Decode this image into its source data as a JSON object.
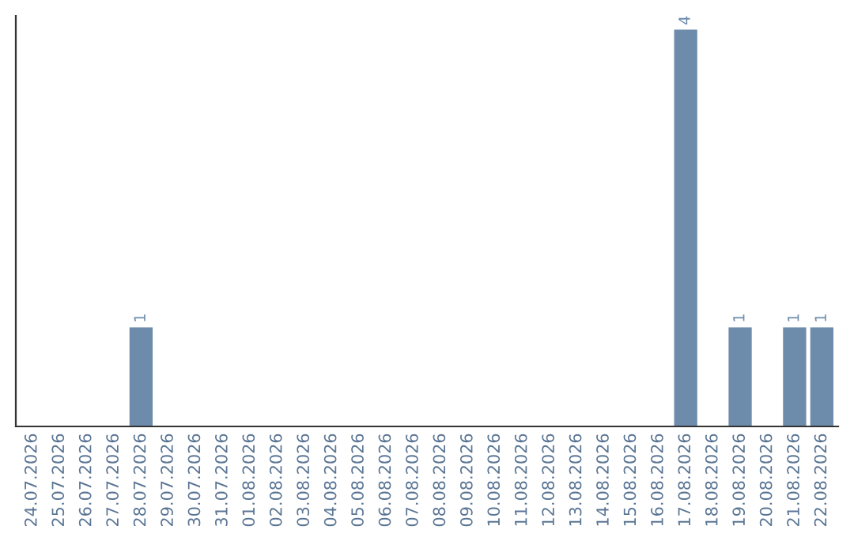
{
  "chart_data": {
    "type": "bar",
    "categories": [
      "24.07.2026",
      "25.07.2026",
      "26.07.2026",
      "27.07.2026",
      "28.07.2026",
      "29.07.2026",
      "30.07.2026",
      "31.07.2026",
      "01.08.2026",
      "02.08.2026",
      "03.08.2026",
      "04.08.2026",
      "05.08.2026",
      "06.08.2026",
      "07.08.2026",
      "08.08.2026",
      "09.08.2026",
      "10.08.2026",
      "11.08.2026",
      "12.08.2026",
      "13.08.2026",
      "14.08.2026",
      "15.08.2026",
      "16.08.2026",
      "17.08.2026",
      "18.08.2026",
      "19.08.2026",
      "20.08.2026",
      "21.08.2026",
      "22.08.2026"
    ],
    "values": [
      0,
      0,
      0,
      0,
      1,
      0,
      0,
      0,
      0,
      0,
      0,
      0,
      0,
      0,
      0,
      0,
      0,
      0,
      0,
      0,
      0,
      0,
      0,
      0,
      4,
      0,
      1,
      0,
      1,
      1
    ],
    "value_labels": [
      null,
      null,
      null,
      null,
      "1",
      null,
      null,
      null,
      null,
      null,
      null,
      null,
      null,
      null,
      null,
      null,
      null,
      null,
      null,
      null,
      null,
      null,
      null,
      null,
      "4",
      null,
      "1",
      null,
      "1",
      "1"
    ],
    "color": "#6d8bab",
    "grid": false,
    "legend": false
  }
}
